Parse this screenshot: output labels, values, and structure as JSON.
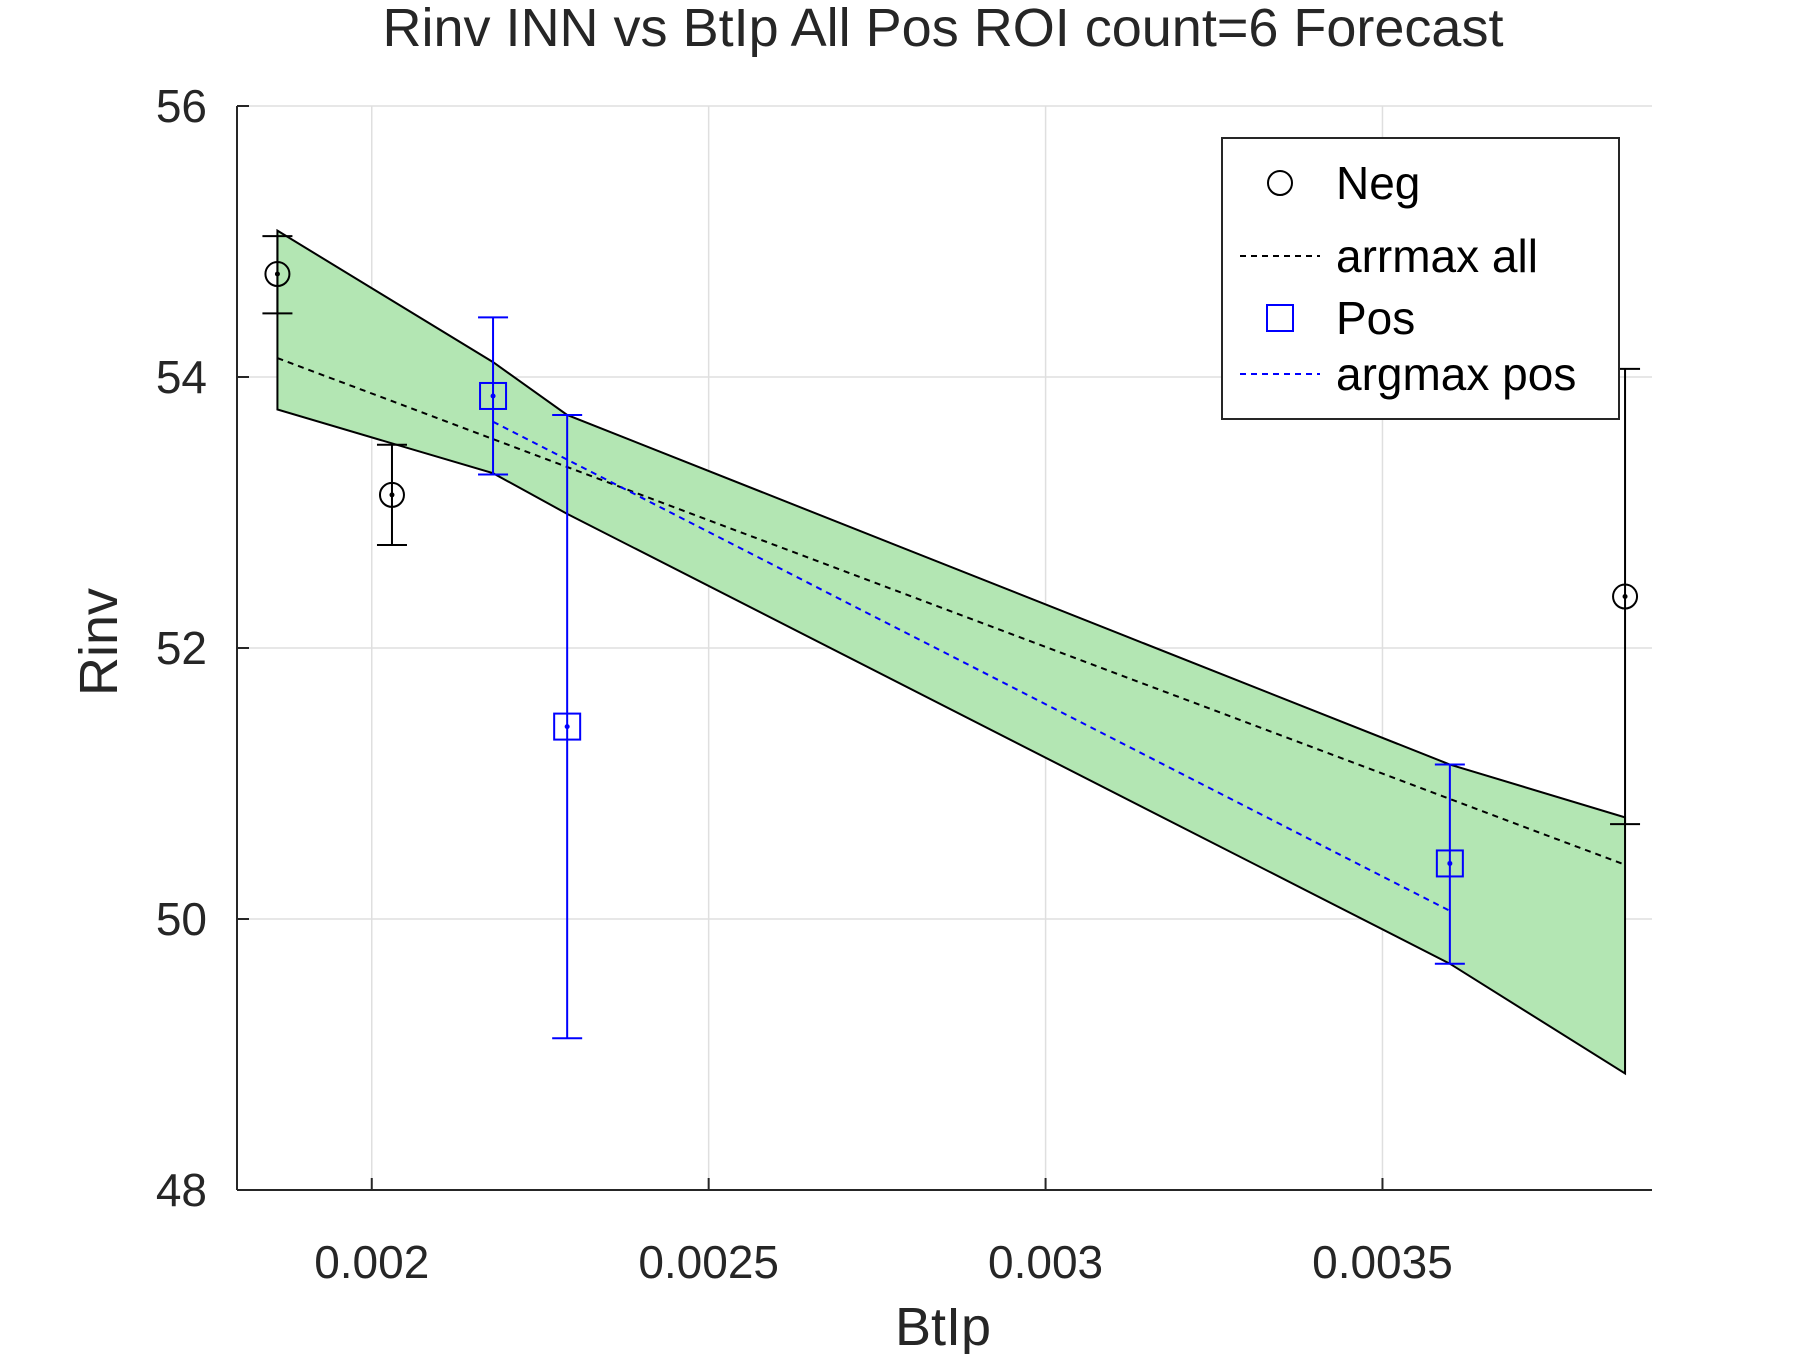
{
  "chart_data": {
    "type": "scatter",
    "title": "Rinv INN vs BtIp All Pos ROI count=6 Forecast",
    "xlabel": "BtIp",
    "ylabel": "Rinv",
    "xlim": [
      0.0018,
      0.0039
    ],
    "ylim": [
      48,
      56
    ],
    "grid": true,
    "legend_position": "top-right",
    "x_ticks": [
      0.002,
      0.0025,
      0.003,
      0.0035
    ],
    "x_tick_labels": [
      "0.002",
      "0.0025",
      "0.003",
      "0.0035"
    ],
    "y_ticks": [
      48,
      50,
      52,
      54,
      56
    ],
    "y_tick_labels": [
      "48",
      "50",
      "52",
      "54",
      "56"
    ],
    "colors": {
      "neg": "#000000",
      "pos": "#0000ff",
      "band_fill": "#b3e6b3",
      "grid": "#dfdfdf"
    },
    "series": [
      {
        "name": "Neg",
        "marker": "circle",
        "color": "#000000",
        "points": [
          {
            "x": 0.00186,
            "y": 54.76,
            "ylow": 54.47,
            "yhigh": 55.04
          },
          {
            "x": 0.00203,
            "y": 53.13,
            "ylow": 52.76,
            "yhigh": 53.5
          },
          {
            "x": 0.00386,
            "y": 52.38,
            "ylow": 50.7,
            "yhigh": 54.06
          }
        ]
      },
      {
        "name": "arrmax all",
        "style": "dashed",
        "color": "#000000",
        "x": [
          0.00186,
          0.00386
        ],
        "y": [
          54.14,
          50.4
        ]
      },
      {
        "name": "Pos",
        "marker": "square",
        "color": "#0000ff",
        "points": [
          {
            "x": 0.00218,
            "y": 53.86,
            "ylow": 53.28,
            "yhigh": 54.44
          },
          {
            "x": 0.00229,
            "y": 51.42,
            "ylow": 49.12,
            "yhigh": 53.72
          },
          {
            "x": 0.0036,
            "y": 50.41,
            "ylow": 49.67,
            "yhigh": 51.14
          }
        ]
      },
      {
        "name": "argmax pos",
        "style": "dashed",
        "color": "#0000ff",
        "x": [
          0.00218,
          0.0036
        ],
        "y": [
          53.67,
          50.06
        ]
      }
    ],
    "confidence_band": {
      "x": [
        0.00186,
        0.00218,
        0.00229,
        0.0036,
        0.00386
      ],
      "upper": [
        55.08,
        54.11,
        53.72,
        51.14,
        50.75
      ],
      "lower": [
        53.76,
        53.29,
        52.99,
        49.67,
        48.86
      ]
    }
  }
}
